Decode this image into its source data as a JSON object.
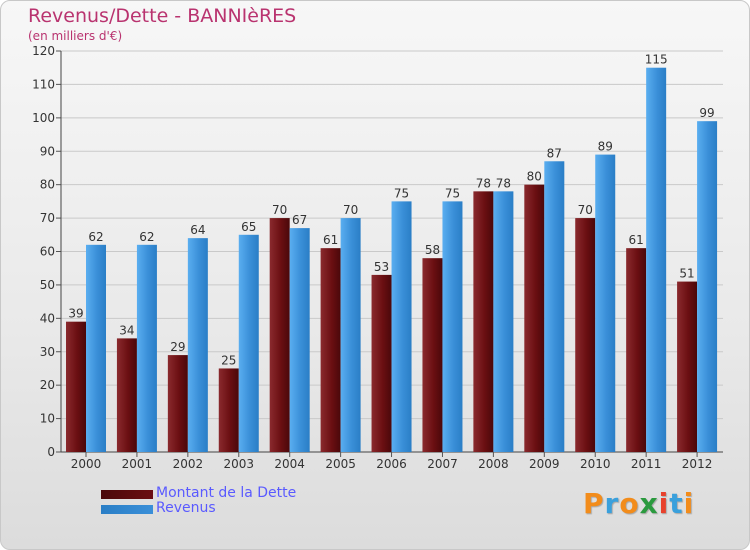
{
  "chart_data": {
    "type": "bar",
    "title": "Revenus/Dette - BANNIèRES",
    "subtitle": "(en milliers d'€)",
    "categories": [
      "2000",
      "2001",
      "2002",
      "2003",
      "2004",
      "2005",
      "2006",
      "2007",
      "2008",
      "2009",
      "2010",
      "2011",
      "2012"
    ],
    "series": [
      {
        "name": "Montant de la Dette",
        "color": "#6b0f12",
        "values": [
          39,
          34,
          29,
          25,
          70,
          61,
          53,
          58,
          78,
          80,
          70,
          61,
          51
        ]
      },
      {
        "name": "Revenus",
        "color": "#3a8fd8",
        "values": [
          62,
          62,
          64,
          65,
          67,
          70,
          75,
          75,
          78,
          87,
          89,
          115,
          99
        ]
      }
    ],
    "ylim": [
      0,
      120
    ],
    "yticks": [
      0,
      10,
      20,
      30,
      40,
      50,
      60,
      70,
      80,
      90,
      100,
      110,
      120
    ],
    "grid": true,
    "legend_position": "bottom-left",
    "data_labels": true
  },
  "logo": {
    "text": "Proxiti",
    "colors": [
      "#f28c1b",
      "#3aa0dc",
      "#f28c1b",
      "#2a9a3e",
      "#e8412c",
      "#3aa0dc",
      "#f28c1b"
    ]
  }
}
